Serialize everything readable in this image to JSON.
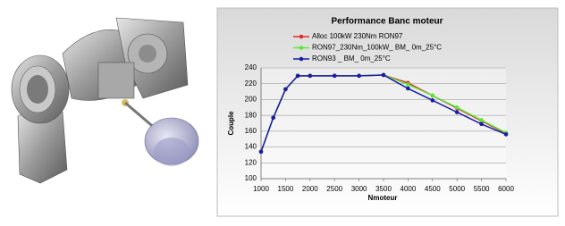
{
  "chart_data": {
    "type": "line",
    "title": "Performance Banc moteur",
    "xlabel": "Nmoteur",
    "ylabel": "Couple",
    "x": [
      1000,
      1250,
      1500,
      1750,
      2000,
      2500,
      3000,
      3500,
      4000,
      4500,
      5000,
      5500,
      6000
    ],
    "series": [
      {
        "name": "Alloc 100kW 230Nm RON97",
        "color": "#e03026",
        "values": [
          134,
          177,
          213,
          230,
          230,
          230,
          230,
          231,
          221,
          205,
          189,
          173,
          157
        ]
      },
      {
        "name": "RON97_230Nm_100kW_ BM_ 0m_25°C",
        "color": "#5ce83a",
        "values": [
          134,
          177,
          213,
          230,
          230,
          230,
          230,
          231,
          219,
          205,
          190,
          174,
          158
        ]
      },
      {
        "name": "RON93 _ BM_ 0m_25°C",
        "color": "#1c1ca6",
        "values": [
          134,
          177,
          213,
          230,
          230,
          230,
          230,
          231,
          214,
          199,
          184,
          169,
          156
        ]
      }
    ],
    "xlim": [
      1000,
      6000
    ],
    "xticks": [
      1000,
      1500,
      2000,
      2500,
      3000,
      3500,
      4000,
      4500,
      5000,
      5500,
      6000
    ],
    "ylim": [
      100,
      240
    ],
    "yticks": [
      100,
      120,
      140,
      160,
      180,
      200,
      220,
      240
    ],
    "grid": true,
    "legend": "top"
  }
}
